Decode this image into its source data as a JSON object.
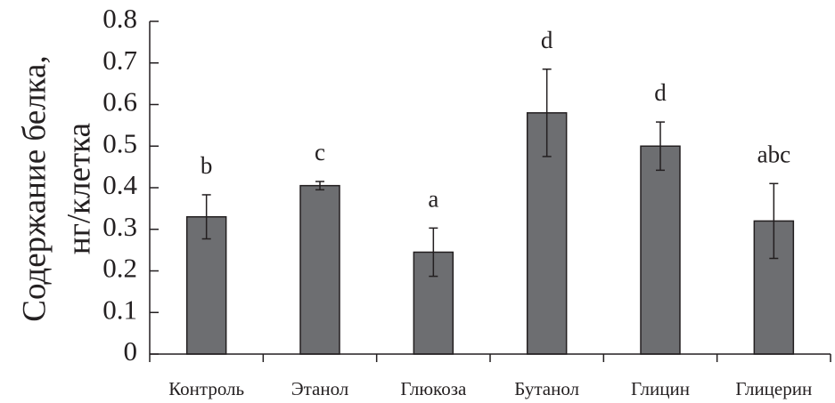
{
  "chart_data": {
    "type": "bar",
    "title": "",
    "ylabel_lines": [
      "Содержание белка,",
      "нг/клетка"
    ],
    "xlabel": "",
    "ylim": [
      0,
      0.8
    ],
    "yticks": [
      0,
      0.1,
      0.2,
      0.3,
      0.4,
      0.5,
      0.6,
      0.7,
      0.8
    ],
    "ytick_labels": [
      "0",
      "0.1",
      "0.2",
      "0.3",
      "0.4",
      "0.5",
      "0.6",
      "0.7",
      "0.8"
    ],
    "categories": [
      "Контроль",
      "Этанол",
      "Глюкоза",
      "Бутанол",
      "Глицин",
      "Глицерин"
    ],
    "values": [
      0.33,
      0.405,
      0.245,
      0.58,
      0.5,
      0.32
    ],
    "errors": [
      0.053,
      0.01,
      0.058,
      0.105,
      0.058,
      0.09
    ],
    "significance": [
      "b",
      "c",
      "a",
      "d",
      "d",
      "abc"
    ],
    "grid": false,
    "bar_color": "#6d6e71",
    "line_color": "#231f20"
  }
}
